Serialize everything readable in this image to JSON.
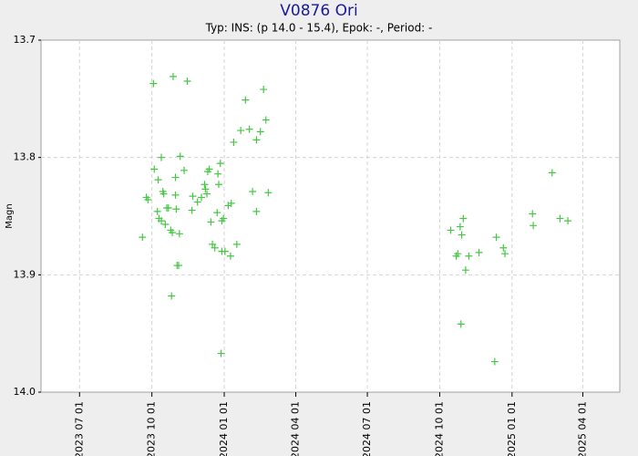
{
  "chart_data": {
    "type": "scatter",
    "title": "V0876 Ori",
    "subtitle": "Typ: INS: (p 14.0 - 15.4), Epok: -, Period: -",
    "y_label": "Magn",
    "y_inverted": true,
    "grid": true,
    "marker": "+",
    "color": "#44c844",
    "xlim": [
      "2023-05-13",
      "2025-05-18"
    ],
    "xticks": [
      "2023 07 01",
      "2023 10 01",
      "2024 01 01",
      "2024 04 01",
      "2024 07 01",
      "2024 10 01",
      "2025 01 01",
      "2025 04 01"
    ],
    "ylim": [
      13.7,
      14.0
    ],
    "yticks": [
      13.7,
      13.8,
      13.9,
      {
        "value": 14,
        "label": "14.0"
      }
    ],
    "x": [
      "2023-09-19",
      "2023-09-24",
      "2023-09-26",
      "2023-10-03",
      "2023-10-04",
      "2023-10-08",
      "2023-10-09",
      "2023-10-10",
      "2023-10-13",
      "2023-10-15",
      "2023-10-16",
      "2023-10-13",
      "2023-10-18",
      "2023-10-20",
      "2023-10-22",
      "2023-10-25",
      "2023-10-27",
      "2023-10-26",
      "2023-10-28",
      "2023-10-31",
      "2023-10-31",
      "2023-11-01",
      "2023-11-02",
      "2023-11-04",
      "2023-11-05",
      "2023-11-06",
      "2023-11-11",
      "2023-11-15",
      "2023-11-21",
      "2023-11-22",
      "2023-11-28",
      "2023-12-03",
      "2023-12-07",
      "2023-12-08",
      "2023-12-10",
      "2023-12-11",
      "2023-12-13",
      "2023-12-15",
      "2023-12-17",
      "2023-12-20",
      "2023-12-23",
      "2023-12-24",
      "2023-12-25",
      "2023-12-27",
      "2023-12-29",
      "2023-12-31",
      "2024-01-02",
      "2023-12-28",
      "2023-12-29",
      "2024-01-06",
      "2024-01-09",
      "2024-01-10",
      "2024-01-13",
      "2024-01-17",
      "2024-01-22",
      "2024-01-28",
      "2024-02-02",
      "2024-02-06",
      "2024-02-11",
      "2024-02-11",
      "2024-02-16",
      "2024-02-20",
      "2024-02-23",
      "2024-02-26",
      "2024-10-15",
      "2024-10-22",
      "2024-10-24",
      "2024-10-27",
      "2024-10-29",
      "2024-10-31",
      "2024-10-28",
      "2024-11-03",
      "2024-11-07",
      "2024-11-20",
      "2024-12-10",
      "2024-12-12",
      "2024-12-21",
      "2024-12-23",
      "2025-01-27",
      "2025-01-28",
      "2025-02-21",
      "2025-03-03",
      "2025-03-13"
    ],
    "values": [
      13.868,
      13.834,
      13.836,
      13.737,
      13.81,
      13.846,
      13.819,
      13.852,
      13.8,
      13.829,
      13.831,
      13.854,
      13.857,
      13.843,
      13.843,
      13.862,
      13.864,
      13.918,
      13.731,
      13.832,
      13.817,
      13.844,
      13.892,
      13.892,
      13.865,
      13.799,
      13.811,
      13.735,
      13.845,
      13.833,
      13.838,
      13.834,
      13.823,
      13.827,
      13.831,
      13.812,
      13.81,
      13.855,
      13.874,
      13.877,
      13.847,
      13.814,
      13.823,
      13.805,
      13.854,
      13.852,
      13.88,
      13.967,
      13.88,
      13.841,
      13.884,
      13.839,
      13.787,
      13.874,
      13.777,
      13.751,
      13.776,
      13.829,
      13.785,
      13.846,
      13.778,
      13.742,
      13.768,
      13.83,
      13.862,
      13.884,
      13.882,
      13.859,
      13.866,
      13.852,
      13.942,
      13.896,
      13.884,
      13.881,
      13.974,
      13.868,
      13.877,
      13.882,
      13.848,
      13.858,
      13.813,
      13.852,
      13.854
    ]
  }
}
